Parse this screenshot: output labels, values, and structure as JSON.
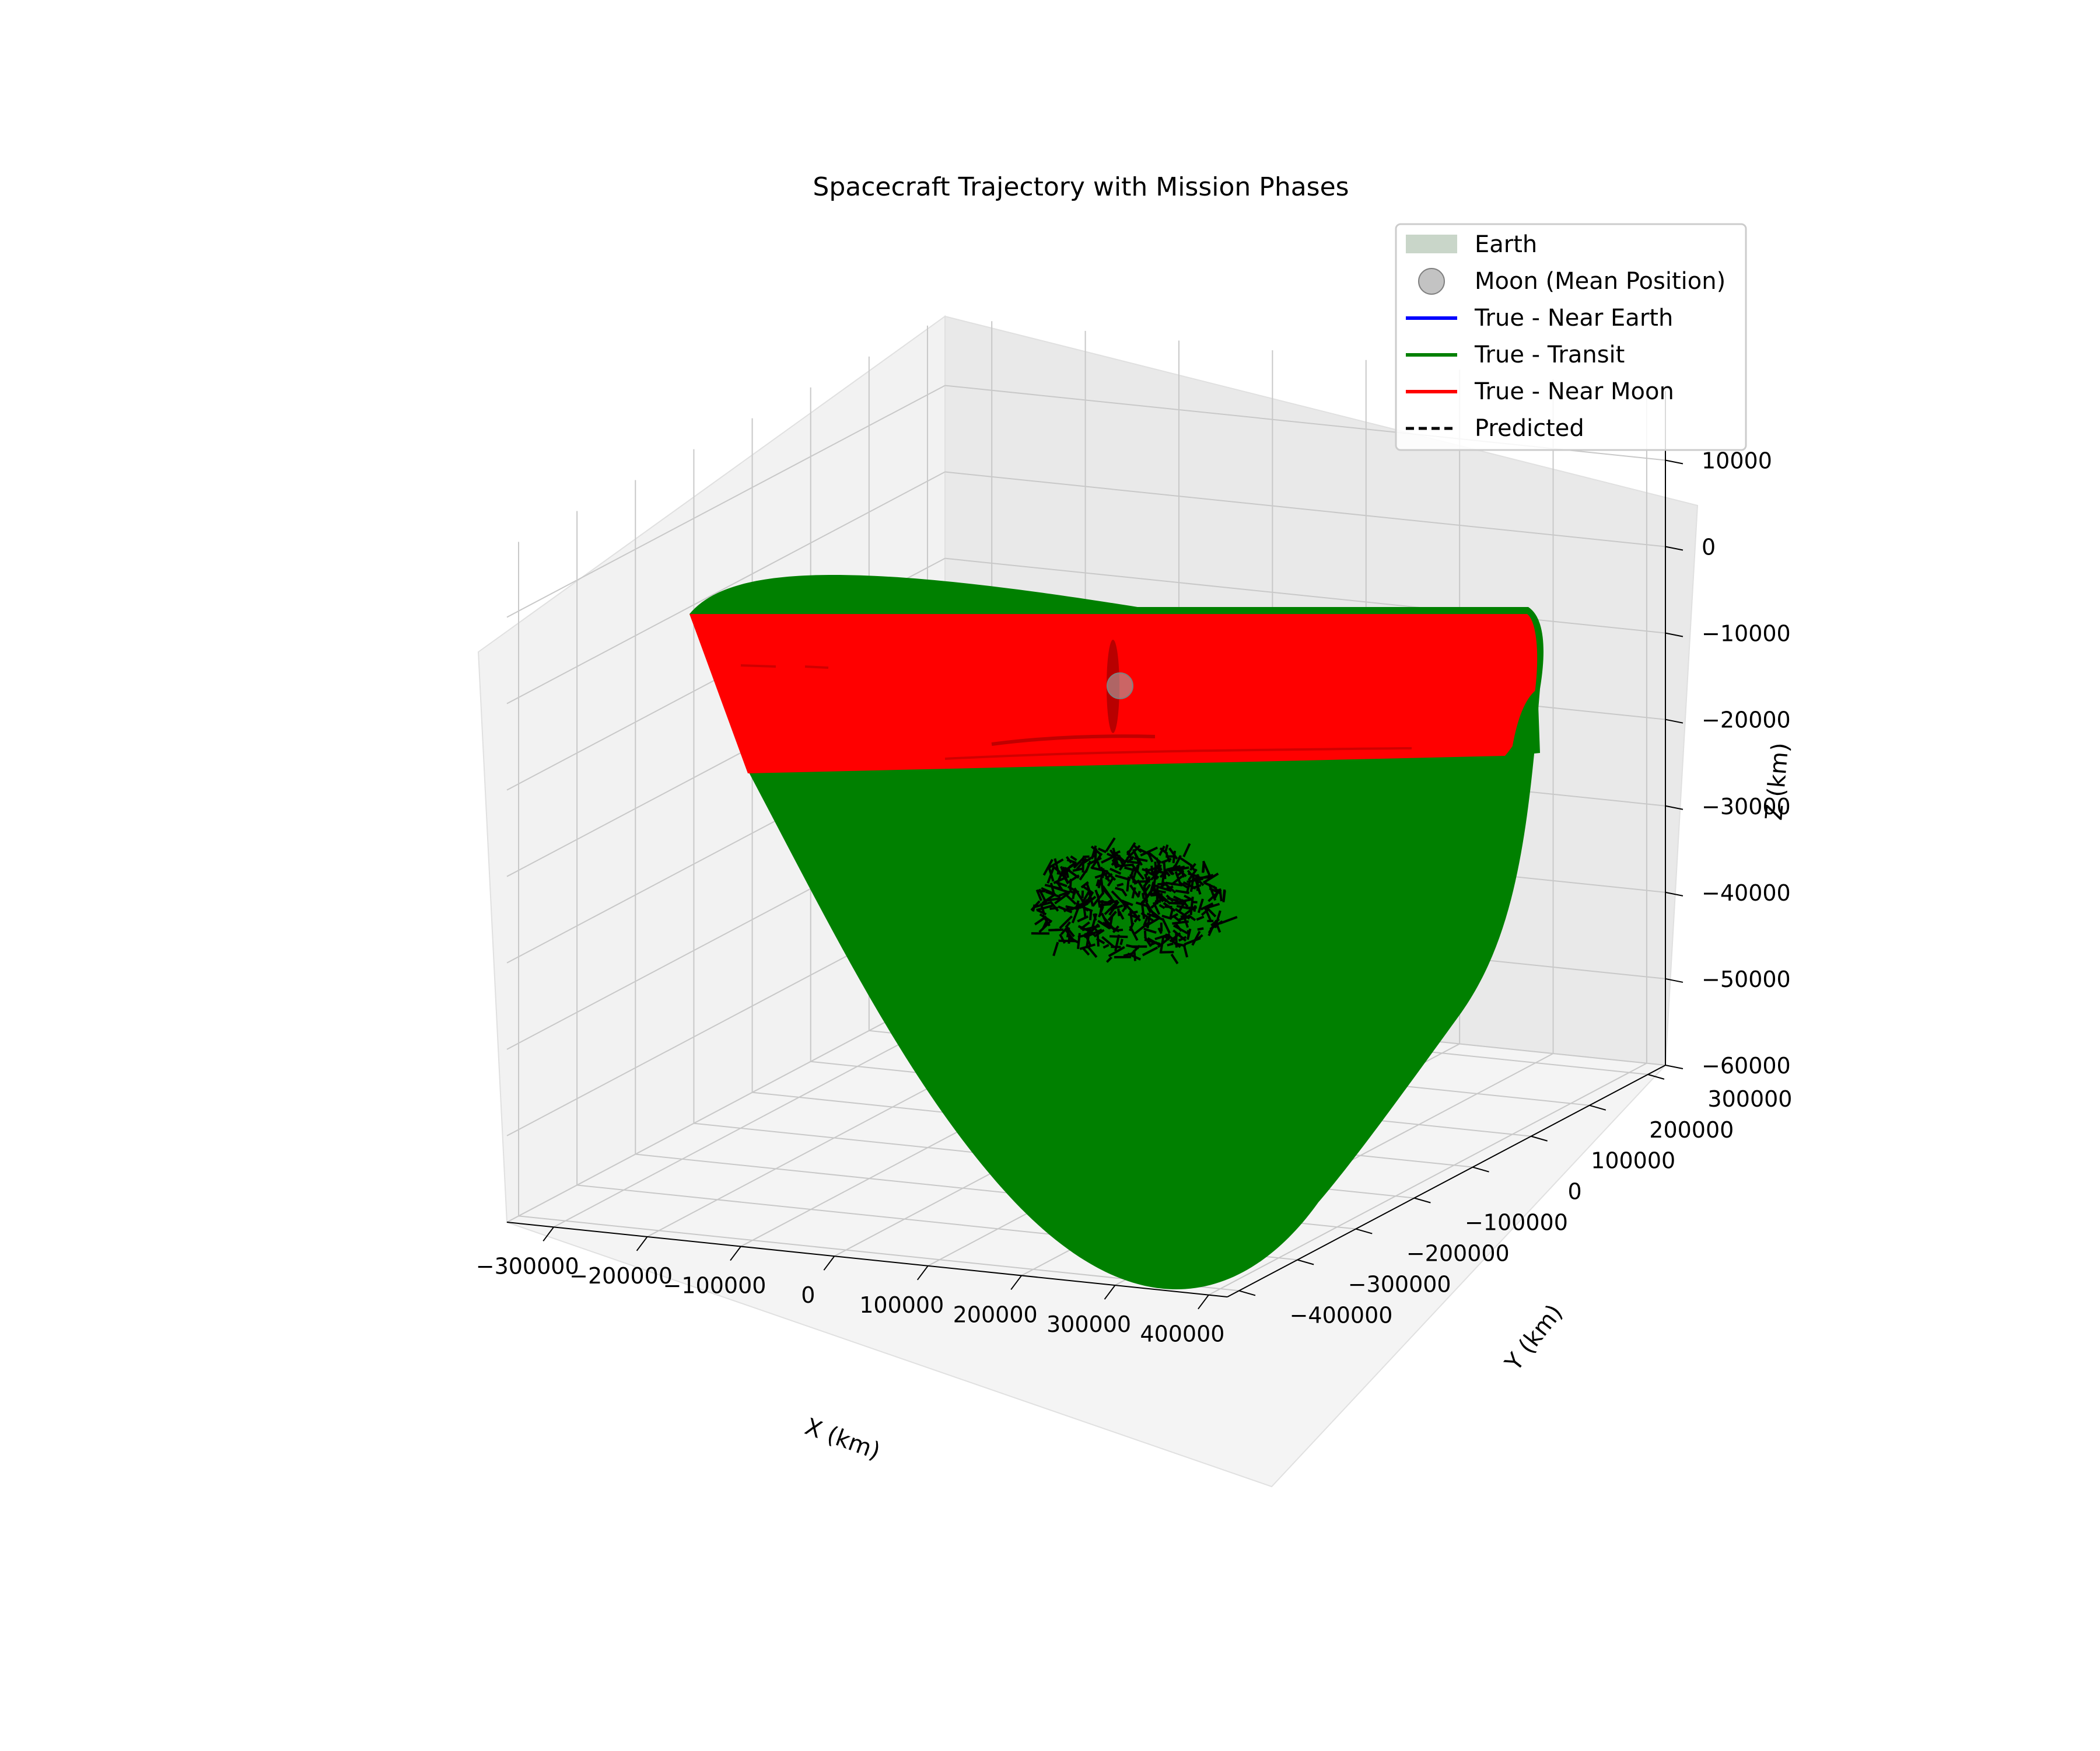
{
  "chart_data": {
    "type": "3d-line",
    "title": "Spacecraft Trajectory with Mission Phases",
    "xlabel": "X (km)",
    "ylabel": "Y (km)",
    "zlabel": "Z (km)",
    "xlim": [
      -350000,
      420000
    ],
    "ylim": [
      -420000,
      330000
    ],
    "zlim": [
      -60000,
      18000
    ],
    "x_ticks": [
      "−300000",
      "−200000",
      "−100000",
      "0",
      "100000",
      "200000",
      "300000",
      "400000"
    ],
    "y_ticks": [
      "−400000",
      "−300000",
      "−200000",
      "−100000",
      "0",
      "100000",
      "200000",
      "300000"
    ],
    "z_ticks": [
      "−60000",
      "−50000",
      "−40000",
      "−30000",
      "−20000",
      "−10000",
      "0",
      "10000"
    ],
    "grid": true,
    "legend_position": "top-right",
    "legend": [
      {
        "label": "Earth",
        "marker": "patch",
        "color": "#c9d6c9"
      },
      {
        "label": "Moon (Mean Position)",
        "marker": "circle",
        "color": "#a9a9a9"
      },
      {
        "label": "True - Near Earth",
        "marker": "line",
        "color": "#0000ff"
      },
      {
        "label": "True - Transit",
        "marker": "line",
        "color": "#008000"
      },
      {
        "label": "True - Near Moon",
        "marker": "line",
        "color": "#ff0000"
      },
      {
        "label": "Predicted",
        "marker": "dashed",
        "color": "#000000"
      }
    ],
    "series": [
      {
        "name": "True - Transit",
        "color": "#008000"
      },
      {
        "name": "True - Near Moon",
        "color": "#ff0000"
      },
      {
        "name": "Predicted",
        "color": "#000000"
      },
      {
        "name": "Moon (Mean Position)",
        "color": "#a9a9a9",
        "points": [
          {
            "x": 0,
            "y": 0,
            "z": 0
          }
        ]
      }
    ]
  }
}
